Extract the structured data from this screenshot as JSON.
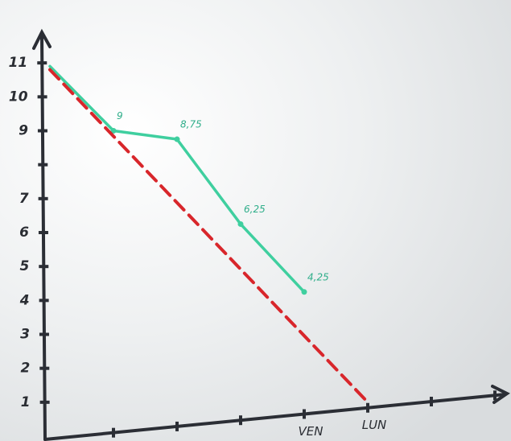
{
  "chart_data": {
    "type": "line",
    "categories": [
      null,
      null,
      null,
      null,
      "VEN",
      "LUN",
      null,
      null
    ],
    "series": [
      {
        "color": "#3fcf9f",
        "style": "solid",
        "values": [
          10.9,
          9,
          8.75,
          6.25,
          4.25,
          null,
          null,
          null
        ],
        "value_labels": [
          null,
          "9",
          "8,75",
          "6,25",
          "4,25",
          null,
          null,
          null
        ]
      },
      {
        "color": "#d8262b",
        "style": "dashed",
        "values": [
          10.8,
          8.84,
          6.88,
          4.92,
          2.96,
          1,
          null,
          null
        ]
      }
    ],
    "ylim": [
      0,
      12
    ],
    "yticks": [
      1,
      2,
      3,
      4,
      5,
      6,
      7,
      9,
      10,
      11
    ],
    "minor_yticks": [
      8
    ]
  }
}
